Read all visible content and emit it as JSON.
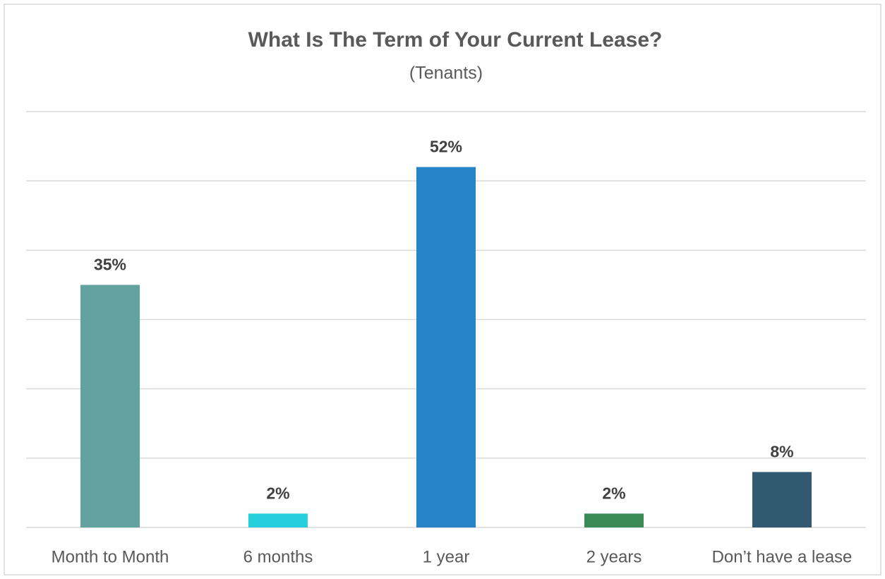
{
  "chart_data": {
    "type": "bar",
    "title": "What Is The Term of Your Current Lease?",
    "subtitle": "(Tenants)",
    "categories": [
      "Month to Month",
      "6 months",
      "1 year",
      "2 years",
      "Don’t have a lease"
    ],
    "values": [
      35,
      2,
      52,
      2,
      8
    ],
    "value_labels": [
      "35%",
      "2%",
      "52%",
      "2%",
      "8%"
    ],
    "colors": [
      "#62a39f",
      "#27cedb",
      "#2683c6",
      "#3a8a55",
      "#31596f"
    ],
    "ylim": [
      0,
      60
    ],
    "yticks": [
      0,
      10,
      20,
      30,
      40,
      50,
      60
    ],
    "grid": true
  }
}
